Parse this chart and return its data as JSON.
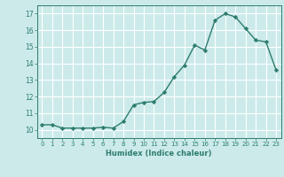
{
  "x": [
    0,
    1,
    2,
    3,
    4,
    5,
    6,
    7,
    8,
    9,
    10,
    11,
    12,
    13,
    14,
    15,
    16,
    17,
    18,
    19,
    20,
    21,
    22,
    23
  ],
  "y": [
    10.3,
    10.3,
    10.1,
    10.1,
    10.1,
    10.1,
    10.15,
    10.1,
    10.5,
    11.5,
    11.65,
    11.7,
    12.25,
    13.2,
    13.9,
    15.1,
    14.8,
    16.6,
    17.0,
    16.8,
    16.1,
    15.4,
    15.3,
    13.6
  ],
  "xlabel": "Humidex (Indice chaleur)",
  "xlim": [
    -0.5,
    23.5
  ],
  "ylim": [
    9.5,
    17.5
  ],
  "yticks": [
    10,
    11,
    12,
    13,
    14,
    15,
    16,
    17
  ],
  "xticks": [
    0,
    1,
    2,
    3,
    4,
    5,
    6,
    7,
    8,
    9,
    10,
    11,
    12,
    13,
    14,
    15,
    16,
    17,
    18,
    19,
    20,
    21,
    22,
    23
  ],
  "line_color": "#2d7d6d",
  "bg_color": "#cceaea",
  "grid_color": "#ffffff",
  "marker": "D",
  "markersize": 2.2,
  "linewidth": 1.0
}
